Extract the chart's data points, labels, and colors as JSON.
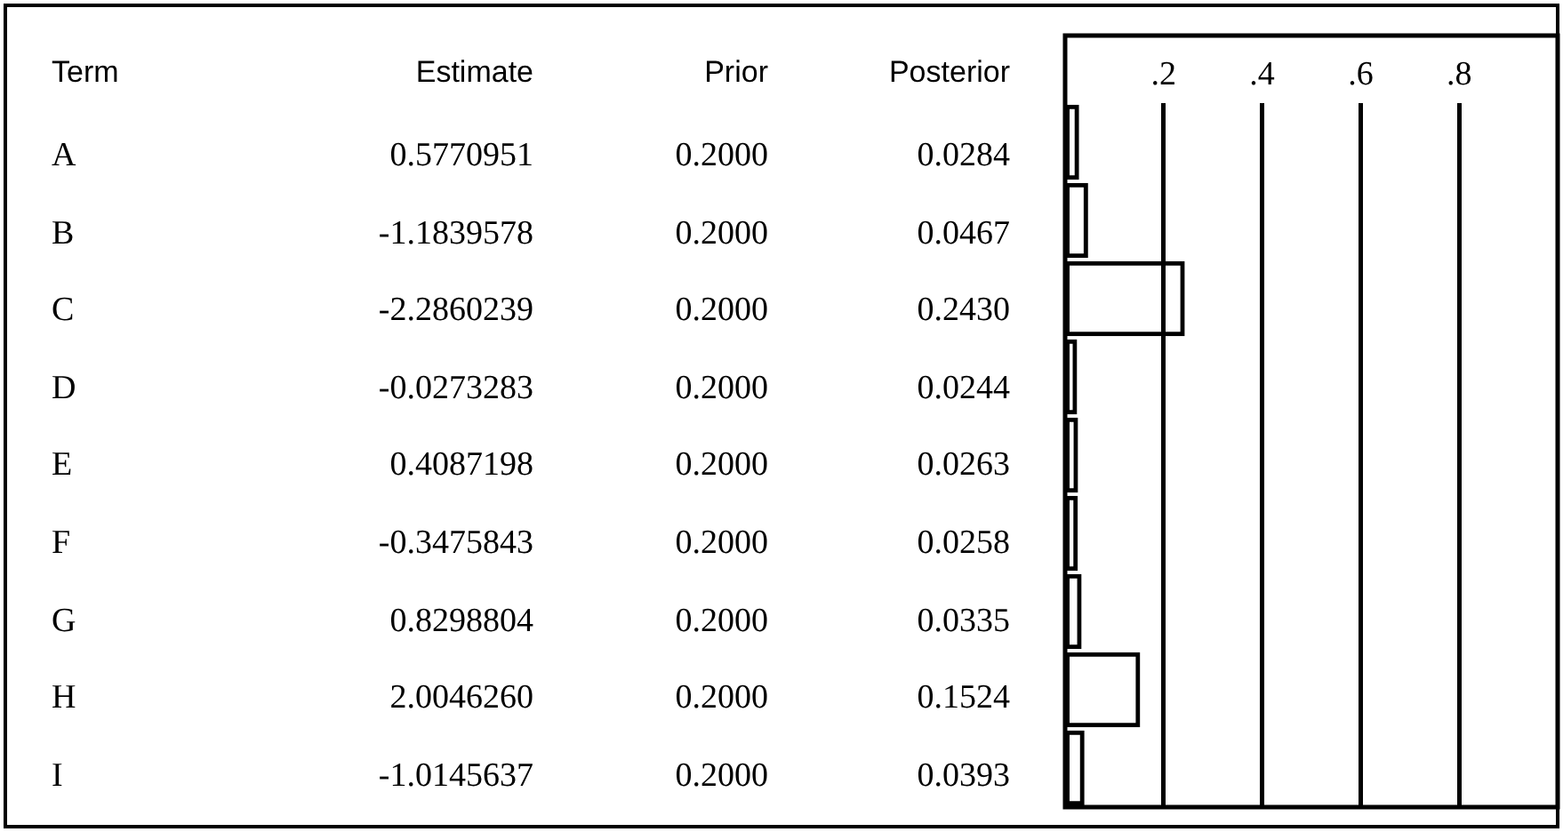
{
  "chart_data": [
    {
      "type": "other",
      "ylabel": "Term",
      "categories": [
        "A",
        "B",
        "C",
        "D",
        "E",
        "F",
        "G",
        "H",
        "I"
      ],
      "series": [
        {
          "name": "Estimate",
          "values": [
            0.5770951,
            -1.1839578,
            -2.2860239,
            -0.0273283,
            0.4087198,
            -0.3475843,
            0.8298804,
            2.004626,
            -1.0145637
          ],
          "value_labels": [
            "0.5770951",
            "-1.1839578",
            "-2.2860239",
            "-0.0273283",
            "0.4087198",
            "-0.3475843",
            "0.8298804",
            "2.0046260",
            "-1.0145637"
          ]
        },
        {
          "name": "Prior",
          "values": [
            0.2,
            0.2,
            0.2,
            0.2,
            0.2,
            0.2,
            0.2,
            0.2,
            0.2
          ],
          "value_labels": [
            "0.2000",
            "0.2000",
            "0.2000",
            "0.2000",
            "0.2000",
            "0.2000",
            "0.2000",
            "0.2000",
            "0.2000"
          ]
        },
        {
          "name": "Posterior",
          "values": [
            0.0284,
            0.0467,
            0.243,
            0.0244,
            0.0263,
            0.0258,
            0.0335,
            0.1524,
            0.0393
          ],
          "value_labels": [
            "0.0284",
            "0.0467",
            "0.2430",
            "0.0244",
            "0.0263",
            "0.0258",
            "0.0335",
            "0.1524",
            "0.0393"
          ]
        }
      ]
    },
    {
      "type": "bar",
      "orientation": "horizontal",
      "categories": [
        null,
        null,
        null,
        null,
        null,
        null,
        null,
        null,
        null
      ],
      "values": [
        0.0284,
        0.0467,
        0.243,
        0.0244,
        0.0263,
        0.0258,
        0.0335,
        0.1524,
        0.0393
      ],
      "color": "#000000",
      "xlim": [
        0,
        1
      ],
      "xticks": [
        {
          "value": 0.2,
          "label": ".2"
        },
        {
          "value": 0.4,
          "label": ".4"
        },
        {
          "value": 0.6,
          "label": ".6"
        },
        {
          "value": 0.8,
          "label": ".8"
        }
      ],
      "grid": "x",
      "tick_labels": "x"
    }
  ]
}
